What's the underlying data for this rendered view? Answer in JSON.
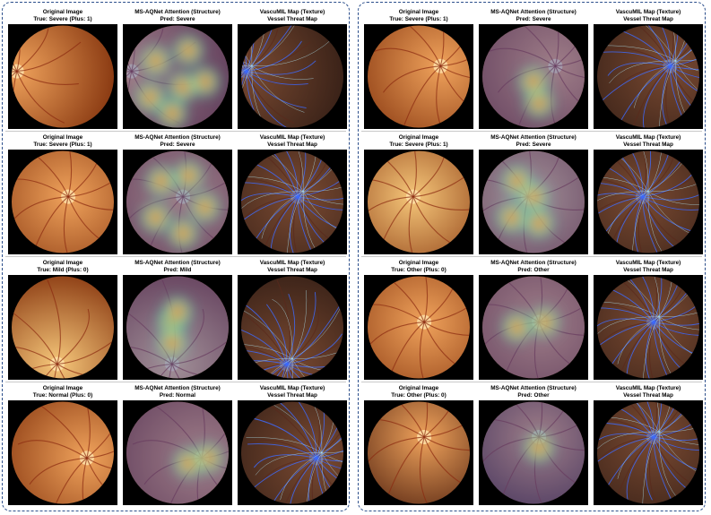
{
  "panels": [
    {
      "rows": [
        {
          "original": {
            "title": "Original Image",
            "subtitle": "True: Severe (Plus: 1)"
          },
          "attention": {
            "title": "MS-AQNet Attention (Structure)",
            "subtitle": "Pred: Severe"
          },
          "vessel": {
            "title": "VascuMIL Map (Texture)",
            "subtitle": "Vessel Threat Map"
          }
        },
        {
          "original": {
            "title": "Original Image",
            "subtitle": "True: Severe (Plus: 1)"
          },
          "attention": {
            "title": "MS-AQNet Attention (Structure)",
            "subtitle": "Pred: Severe"
          },
          "vessel": {
            "title": "VascuMIL Map (Texture)",
            "subtitle": "Vessel Threat Map"
          }
        },
        {
          "original": {
            "title": "Original Image",
            "subtitle": "True: Mild (Plus: 0)"
          },
          "attention": {
            "title": "MS-AQNet Attention (Structure)",
            "subtitle": "Pred: Mild"
          },
          "vessel": {
            "title": "VascuMIL Map (Texture)",
            "subtitle": "Vessel Threat Map"
          }
        },
        {
          "original": {
            "title": "Original Image",
            "subtitle": "True: Normal (Plus: 0)"
          },
          "attention": {
            "title": "MS-AQNet Attention (Structure)",
            "subtitle": "Pred: Normal"
          },
          "vessel": {
            "title": "VascuMIL Map (Texture)",
            "subtitle": "Vessel Threat Map"
          }
        }
      ]
    },
    {
      "rows": [
        {
          "original": {
            "title": "Original Image",
            "subtitle": "True: Severe (Plus: 1)"
          },
          "attention": {
            "title": "MS-AQNet Attention (Structure)",
            "subtitle": "Pred: Severe"
          },
          "vessel": {
            "title": "VascuMIL Map (Texture)",
            "subtitle": "Vessel Threat Map"
          }
        },
        {
          "original": {
            "title": "Original Image",
            "subtitle": "True: Severe (Plus: 1)"
          },
          "attention": {
            "title": "MS-AQNet Attention (Structure)",
            "subtitle": "Pred: Severe"
          },
          "vessel": {
            "title": "VascuMIL Map (Texture)",
            "subtitle": "Vessel Threat Map"
          }
        },
        {
          "original": {
            "title": "Original Image",
            "subtitle": "True: Other (Plus: 0)"
          },
          "attention": {
            "title": "MS-AQNet Attention (Structure)",
            "subtitle": "Pred: Other"
          },
          "vessel": {
            "title": "VascuMIL Map (Texture)",
            "subtitle": "Vessel Threat Map"
          }
        },
        {
          "original": {
            "title": "Original Image",
            "subtitle": "True: Other (Plus: 0)"
          },
          "attention": {
            "title": "MS-AQNet Attention (Structure)",
            "subtitle": "Pred: Other"
          },
          "vessel": {
            "title": "VascuMIL Map (Texture)",
            "subtitle": "Vessel Threat Map"
          }
        }
      ]
    }
  ],
  "colors": {
    "panel_border": "#2c4f8c",
    "fundus_edge": "#8a3a12",
    "fundus_center": "#f0a35c",
    "vessel_highlight": "#3d6bff",
    "heat_hot": "#e0242b",
    "heat_cold": "#3b4fbf"
  }
}
